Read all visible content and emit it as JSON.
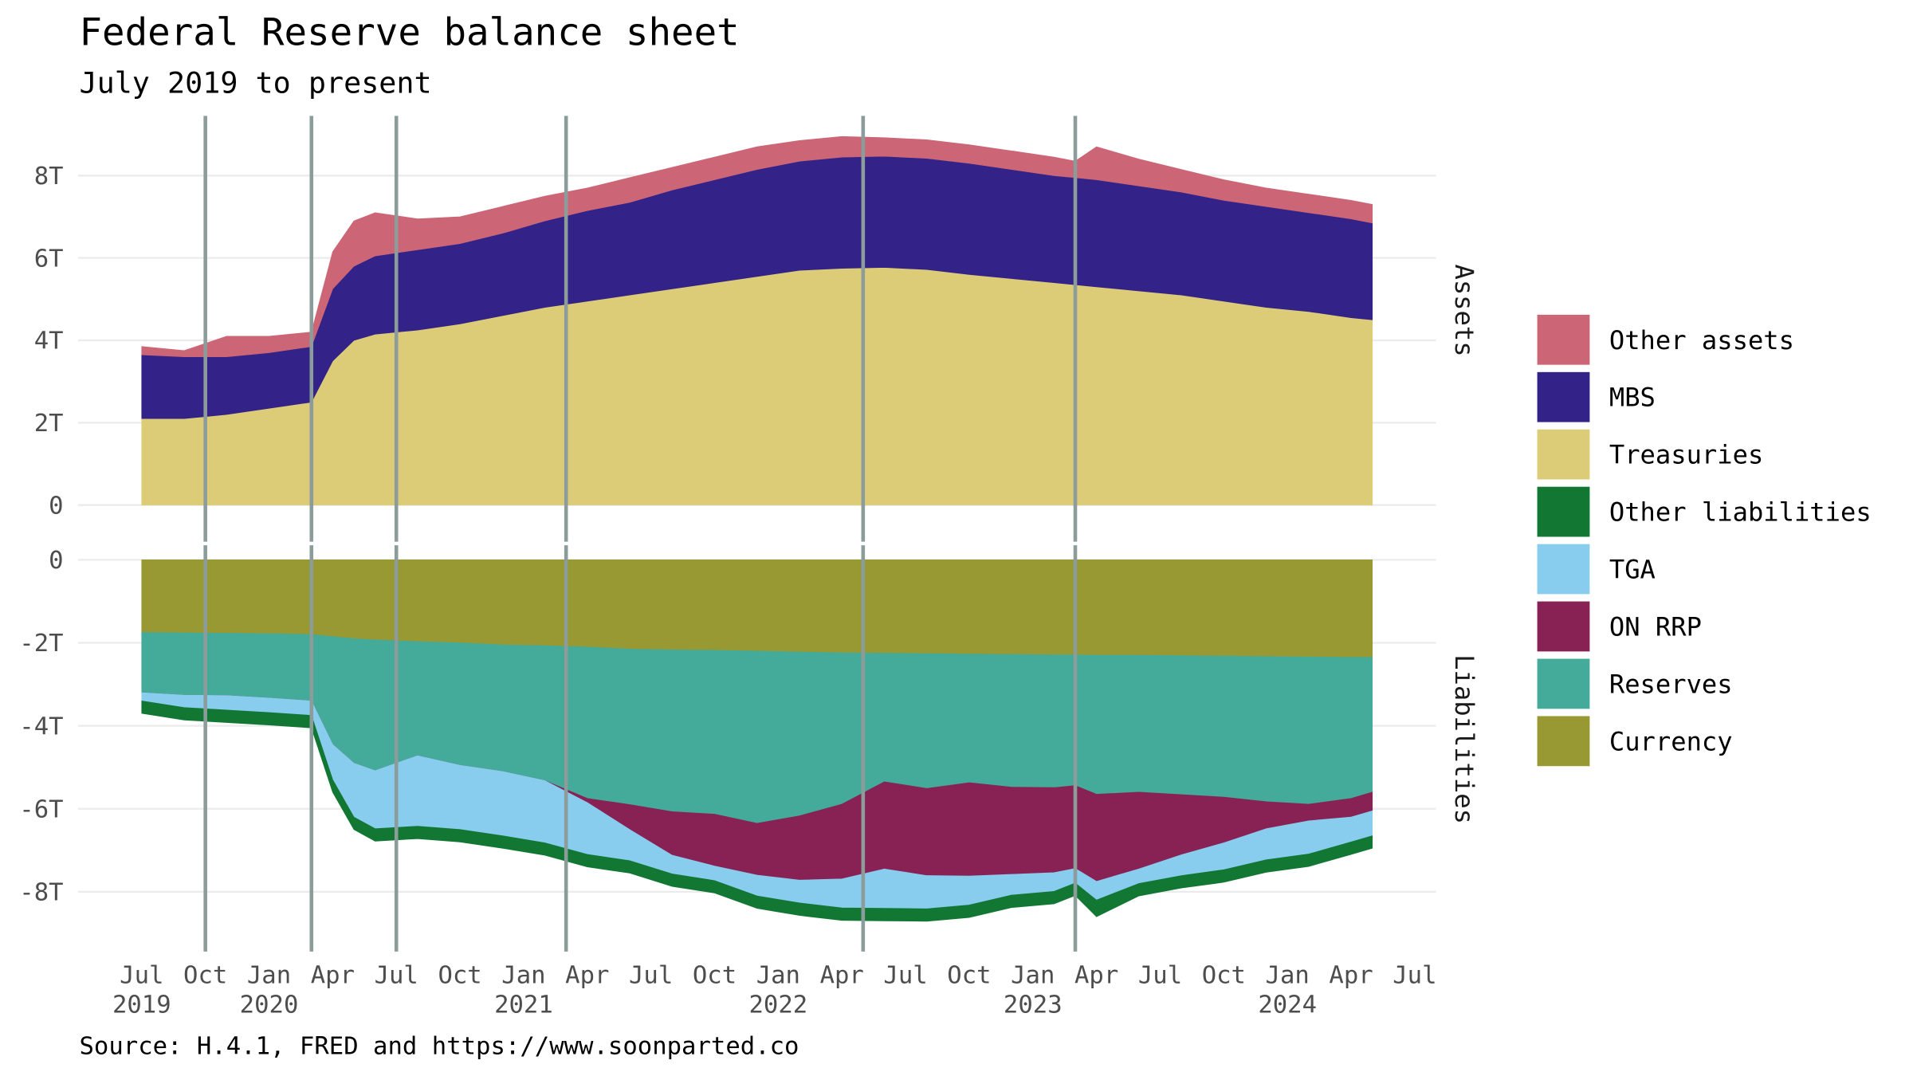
{
  "title": "Federal Reserve balance sheet",
  "subtitle": "July 2019 to present",
  "source": "Source: H.4.1, FRED and https://www.soonparted.co",
  "chart_data": [
    {
      "type": "area",
      "stacked": true,
      "facet_label": "Assets",
      "x": [
        "2019-07",
        "2019-09",
        "2019-11",
        "2020-01",
        "2020-03",
        "2020-04",
        "2020-05",
        "2020-06",
        "2020-08",
        "2020-10",
        "2020-12",
        "2021-02",
        "2021-04",
        "2021-06",
        "2021-08",
        "2021-10",
        "2021-12",
        "2022-02",
        "2022-04",
        "2022-06",
        "2022-08",
        "2022-10",
        "2022-12",
        "2023-02",
        "2023-03",
        "2023-04",
        "2023-06",
        "2023-08",
        "2023-10",
        "2023-12",
        "2024-02",
        "2024-04",
        "2024-05"
      ],
      "xlim": [
        "2019-04",
        "2024-08"
      ],
      "ylim": [
        0,
        9.45
      ],
      "yticks": [
        0,
        {
          "value": 2,
          "label": "2T"
        },
        {
          "value": 4,
          "label": "4T"
        },
        {
          "value": 6,
          "label": "6T"
        },
        {
          "value": 8,
          "label": "8T"
        }
      ],
      "grid": true,
      "vlines": [
        "2019-10",
        "2020-03",
        "2020-07",
        "2021-03",
        "2022-05",
        "2023-03"
      ],
      "series": [
        {
          "name": "Treasuries",
          "color": "#ddcc77",
          "values": [
            2.1,
            2.1,
            2.2,
            2.35,
            2.5,
            3.5,
            4.0,
            4.15,
            4.25,
            4.4,
            4.6,
            4.8,
            4.95,
            5.1,
            5.25,
            5.4,
            5.55,
            5.7,
            5.75,
            5.77,
            5.72,
            5.6,
            5.5,
            5.4,
            5.35,
            5.3,
            5.2,
            5.1,
            4.95,
            4.8,
            4.7,
            4.55,
            4.5
          ]
        },
        {
          "name": "MBS",
          "color": "#332288",
          "values": [
            1.55,
            1.5,
            1.4,
            1.35,
            1.35,
            1.75,
            1.8,
            1.9,
            1.95,
            1.95,
            2.0,
            2.1,
            2.2,
            2.25,
            2.4,
            2.5,
            2.6,
            2.65,
            2.7,
            2.7,
            2.7,
            2.7,
            2.65,
            2.6,
            2.6,
            2.6,
            2.55,
            2.5,
            2.45,
            2.45,
            2.4,
            2.4,
            2.35
          ]
        },
        {
          "name": "Other assets",
          "color": "#cc6677",
          "values": [
            0.2,
            0.15,
            0.5,
            0.4,
            0.35,
            0.9,
            1.1,
            1.05,
            0.75,
            0.65,
            0.65,
            0.6,
            0.55,
            0.6,
            0.55,
            0.55,
            0.55,
            0.5,
            0.5,
            0.45,
            0.45,
            0.45,
            0.45,
            0.45,
            0.4,
            0.8,
            0.65,
            0.55,
            0.5,
            0.45,
            0.45,
            0.45,
            0.45
          ]
        }
      ]
    },
    {
      "type": "area",
      "stacked": true,
      "facet_label": "Liabilities",
      "x": [
        "2019-07",
        "2019-09",
        "2019-11",
        "2020-01",
        "2020-03",
        "2020-04",
        "2020-05",
        "2020-06",
        "2020-08",
        "2020-10",
        "2020-12",
        "2021-02",
        "2021-04",
        "2021-06",
        "2021-08",
        "2021-10",
        "2021-12",
        "2022-02",
        "2022-04",
        "2022-06",
        "2022-08",
        "2022-10",
        "2022-12",
        "2023-02",
        "2023-03",
        "2023-04",
        "2023-06",
        "2023-08",
        "2023-10",
        "2023-12",
        "2024-02",
        "2024-04",
        "2024-05"
      ],
      "xlim": [
        "2019-04",
        "2024-08"
      ],
      "xticks": [
        {
          "value": "2019-07",
          "label": "Jul"
        },
        {
          "value": "2019-10",
          "label": "Oct"
        },
        {
          "value": "2020-01",
          "label": "Jan"
        },
        {
          "value": "2020-04",
          "label": "Apr"
        },
        {
          "value": "2020-07",
          "label": "Jul"
        },
        {
          "value": "2020-10",
          "label": "Oct"
        },
        {
          "value": "2021-01",
          "label": "Jan"
        },
        {
          "value": "2021-04",
          "label": "Apr"
        },
        {
          "value": "2021-07",
          "label": "Jul"
        },
        {
          "value": "2021-10",
          "label": "Oct"
        },
        {
          "value": "2022-01",
          "label": "Jan"
        },
        {
          "value": "2022-04",
          "label": "Apr"
        },
        {
          "value": "2022-07",
          "label": "Jul"
        },
        {
          "value": "2022-10",
          "label": "Oct"
        },
        {
          "value": "2023-01",
          "label": "Jan"
        },
        {
          "value": "2023-04",
          "label": "Apr"
        },
        {
          "value": "2023-07",
          "label": "Jul"
        },
        {
          "value": "2023-10",
          "label": "Oct"
        },
        {
          "value": "2024-01",
          "label": "Jan"
        },
        {
          "value": "2024-04",
          "label": "Apr"
        },
        {
          "value": "2024-07",
          "label": "Jul"
        }
      ],
      "xtick_years": [
        {
          "value": "2019-07",
          "label": "2019"
        },
        {
          "value": "2020-01",
          "label": "2020"
        },
        {
          "value": "2021-01",
          "label": "2021"
        },
        {
          "value": "2022-01",
          "label": "2022"
        },
        {
          "value": "2023-01",
          "label": "2023"
        },
        {
          "value": "2024-01",
          "label": "2024"
        }
      ],
      "ylim": [
        -9,
        0.35
      ],
      "yticks": [
        {
          "value": -8,
          "label": "-8T"
        },
        {
          "value": -6,
          "label": "-6T"
        },
        {
          "value": -4,
          "label": "-4T"
        },
        {
          "value": -2,
          "label": "-2T"
        },
        0
      ],
      "grid": true,
      "vlines": [
        "2019-10",
        "2020-03",
        "2020-07",
        "2021-03",
        "2022-05",
        "2023-03"
      ],
      "series": [
        {
          "name": "Currency",
          "color": "#999933",
          "values": [
            -1.75,
            -1.76,
            -1.77,
            -1.78,
            -1.8,
            -1.85,
            -1.9,
            -1.93,
            -1.97,
            -2.0,
            -2.05,
            -2.07,
            -2.1,
            -2.15,
            -2.17,
            -2.18,
            -2.2,
            -2.22,
            -2.24,
            -2.25,
            -2.26,
            -2.27,
            -2.28,
            -2.29,
            -2.29,
            -2.3,
            -2.3,
            -2.31,
            -2.32,
            -2.33,
            -2.34,
            -2.35,
            -2.35
          ]
        },
        {
          "name": "Reserves",
          "color": "#44aa99",
          "values": [
            -1.45,
            -1.5,
            -1.5,
            -1.55,
            -1.6,
            -2.6,
            -3.0,
            -3.15,
            -2.75,
            -2.95,
            -3.05,
            -3.25,
            -3.65,
            -3.75,
            -3.9,
            -3.95,
            -4.15,
            -3.95,
            -3.65,
            -3.1,
            -3.25,
            -3.1,
            -3.2,
            -3.2,
            -3.15,
            -3.35,
            -3.3,
            -3.35,
            -3.4,
            -3.5,
            -3.55,
            -3.4,
            -3.25
          ]
        },
        {
          "name": "ON RRP",
          "color": "#882255",
          "values": [
            0,
            0,
            0,
            0,
            0,
            0,
            0,
            0,
            0,
            0,
            0,
            0,
            -0.1,
            -0.6,
            -1.05,
            -1.25,
            -1.25,
            -1.55,
            -1.8,
            -2.1,
            -2.1,
            -2.25,
            -2.1,
            -2.05,
            -2.0,
            -2.1,
            -1.85,
            -1.45,
            -1.1,
            -0.65,
            -0.4,
            -0.45,
            -0.45
          ]
        },
        {
          "name": "TGA",
          "color": "#88ccee",
          "values": [
            -0.2,
            -0.3,
            -0.35,
            -0.35,
            -0.35,
            -0.85,
            -1.3,
            -1.4,
            -1.7,
            -1.55,
            -1.55,
            -1.5,
            -1.25,
            -0.75,
            -0.45,
            -0.35,
            -0.5,
            -0.55,
            -0.7,
            -0.95,
            -0.8,
            -0.7,
            -0.5,
            -0.45,
            -0.35,
            -0.45,
            -0.35,
            -0.5,
            -0.65,
            -0.75,
            -0.8,
            -0.6,
            -0.6
          ]
        },
        {
          "name": "Other liabilities",
          "color": "#117733",
          "values": [
            -0.3,
            -0.3,
            -0.3,
            -0.3,
            -0.3,
            -0.3,
            -0.3,
            -0.3,
            -0.3,
            -0.3,
            -0.3,
            -0.3,
            -0.3,
            -0.3,
            -0.3,
            -0.3,
            -0.3,
            -0.3,
            -0.3,
            -0.3,
            -0.3,
            -0.3,
            -0.3,
            -0.3,
            -0.3,
            -0.4,
            -0.3,
            -0.3,
            -0.3,
            -0.3,
            -0.3,
            -0.3,
            -0.3
          ]
        }
      ]
    }
  ]
}
